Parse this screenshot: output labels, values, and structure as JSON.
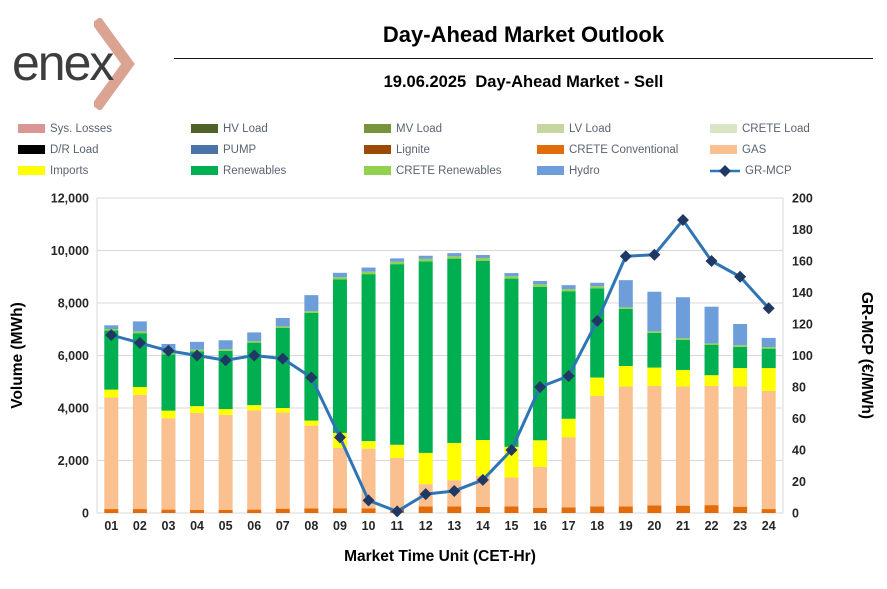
{
  "logo": {
    "text": "enex",
    "chevron_color": "#dba392"
  },
  "header": {
    "title": "Day-Ahead Market Outlook",
    "subtitle": "19.06.2025  Day-Ahead Market - Sell"
  },
  "legend": {
    "items": [
      {
        "label": "Sys. Losses",
        "color": "#d99694",
        "type": "swatch"
      },
      {
        "label": "HV Load",
        "color": "#4f6228",
        "type": "swatch"
      },
      {
        "label": "MV Load",
        "color": "#77933c",
        "type": "swatch"
      },
      {
        "label": "LV Load",
        "color": "#c6d6a0",
        "type": "swatch"
      },
      {
        "label": "CRETE Load",
        "color": "#d9e5c4",
        "type": "swatch"
      },
      {
        "label": "D/R Load",
        "color": "#000000",
        "type": "swatch"
      },
      {
        "label": "PUMP",
        "color": "#4a74a8",
        "type": "swatch"
      },
      {
        "label": "Lignite",
        "color": "#9c4a08",
        "type": "swatch"
      },
      {
        "label": "CRETE Conventional",
        "color": "#e36c0a",
        "type": "swatch"
      },
      {
        "label": "GAS",
        "color": "#fac090",
        "type": "swatch"
      },
      {
        "label": "Imports",
        "color": "#ffff00",
        "type": "swatch"
      },
      {
        "label": "Renewables",
        "color": "#00b050",
        "type": "swatch"
      },
      {
        "label": "CRETE Renewables",
        "color": "#92d050",
        "type": "swatch"
      },
      {
        "label": "Hydro",
        "color": "#6d9eda",
        "type": "swatch"
      },
      {
        "label": "GR-MCP",
        "color": "#2e75b6",
        "marker_color": "#1f3864",
        "type": "line"
      }
    ]
  },
  "chart_data": {
    "type": "bar",
    "subtype": "stacked-bars-with-line",
    "title": "19.06.2025 Day-Ahead Market - Sell",
    "xlabel": "Market Time Unit (CET-Hr)",
    "grid": true,
    "categories": [
      "01",
      "02",
      "03",
      "04",
      "05",
      "06",
      "07",
      "08",
      "09",
      "10",
      "11",
      "12",
      "13",
      "14",
      "15",
      "16",
      "17",
      "18",
      "19",
      "20",
      "21",
      "22",
      "23",
      "24"
    ],
    "y_left": {
      "label": "Volume (MWh)",
      "min": 0,
      "max": 12000,
      "step": 2000
    },
    "y_right": {
      "label": "GR-MCP (€/MWh)",
      "min": 0,
      "max": 200,
      "step": 20
    },
    "series": [
      {
        "name": "CRETE Conventional",
        "color": "#e36c0a",
        "values": [
          150,
          150,
          130,
          120,
          120,
          130,
          165,
          180,
          180,
          180,
          170,
          250,
          250,
          230,
          250,
          200,
          215,
          250,
          250,
          290,
          280,
          300,
          240,
          150
        ]
      },
      {
        "name": "GAS",
        "color": "#fac090",
        "values": [
          4250,
          4350,
          3480,
          3690,
          3620,
          3780,
          3660,
          3150,
          2300,
          2270,
          1930,
          850,
          1000,
          1180,
          1100,
          1560,
          2675,
          4210,
          4570,
          4550,
          4540,
          4540,
          4580,
          4500
        ]
      },
      {
        "name": "Imports",
        "color": "#ffff00",
        "values": [
          300,
          300,
          290,
          260,
          220,
          200,
          175,
          190,
          570,
          290,
          500,
          1190,
          1420,
          1370,
          1170,
          1010,
          700,
          700,
          780,
          700,
          630,
          410,
          700,
          870
        ]
      },
      {
        "name": "Renewables",
        "color": "#00b050",
        "values": [
          2250,
          2050,
          2140,
          2090,
          2220,
          2380,
          3050,
          4100,
          5850,
          6360,
          6880,
          7300,
          7020,
          6830,
          6410,
          5850,
          4860,
          3400,
          2175,
          1320,
          1150,
          1150,
          810,
          740
        ]
      },
      {
        "name": "CRETE Renewables",
        "color": "#92d050",
        "values": [
          60,
          70,
          60,
          60,
          60,
          60,
          60,
          70,
          80,
          90,
          90,
          90,
          90,
          100,
          90,
          90,
          80,
          80,
          60,
          60,
          60,
          60,
          60,
          60
        ]
      },
      {
        "name": "Hydro",
        "color": "#6d9eda",
        "values": [
          140,
          380,
          340,
          300,
          340,
          330,
          320,
          610,
          170,
          160,
          130,
          120,
          120,
          120,
          120,
          130,
          150,
          130,
          1035,
          1510,
          1560,
          1400,
          810,
          350
        ]
      }
    ],
    "line_series": {
      "name": "GR-MCP",
      "axis": "right",
      "color": "#2e75b6",
      "marker_color": "#1f3864",
      "values": [
        113,
        108,
        103,
        100,
        97,
        100,
        98,
        86,
        48,
        8,
        1,
        12,
        14,
        21,
        40,
        80,
        87,
        122,
        163,
        164,
        186,
        160,
        150,
        130
      ]
    },
    "colors": {
      "gridline": "#d9d9d9",
      "tick_text": "#262626",
      "axis_title_text": "#000000"
    }
  }
}
